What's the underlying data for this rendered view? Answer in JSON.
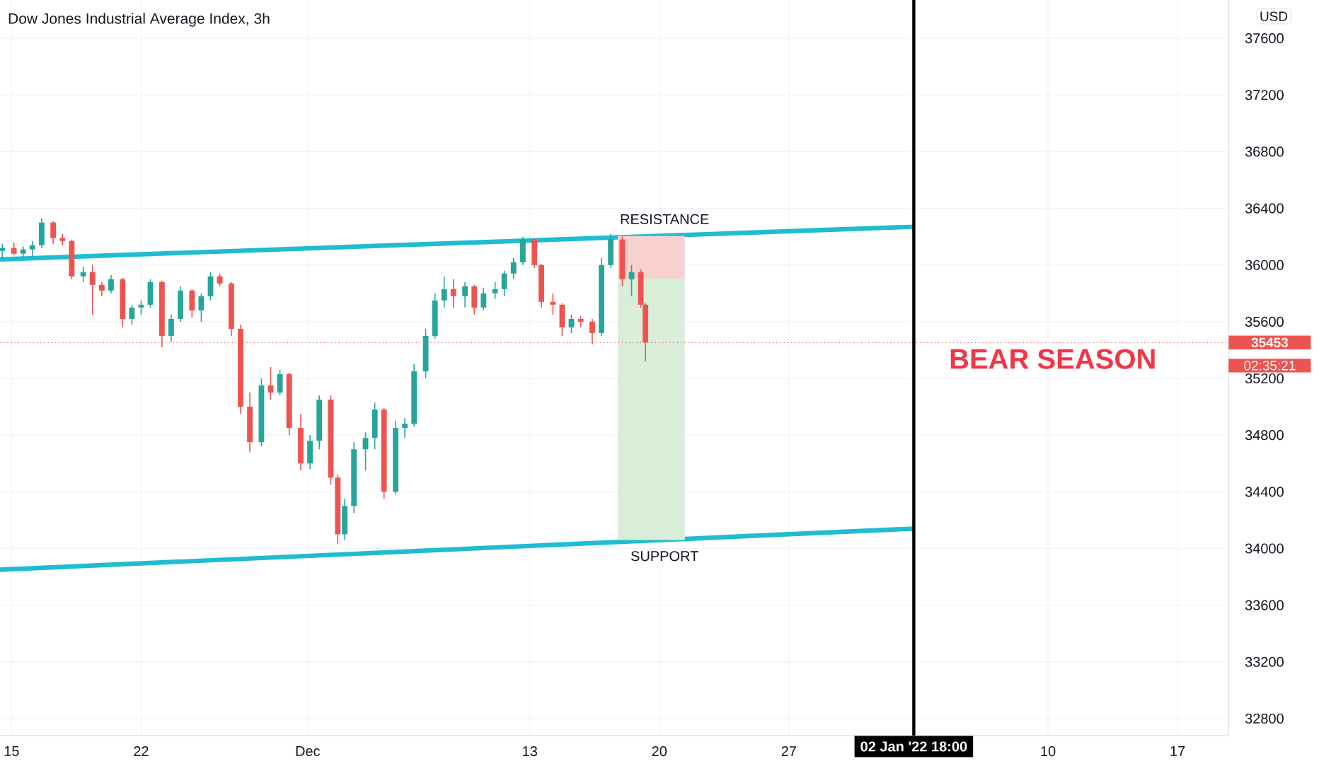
{
  "chart_data": {
    "type": "candlestick",
    "title": "Dow Jones Industrial Average Index, 3h",
    "ylabel": "USD",
    "xlim": [
      "2021-11-14T09:00",
      "2022-01-19T18:00"
    ],
    "ylim": [
      32680,
      37870
    ],
    "xticks": [
      {
        "value": "2021-11-15",
        "label": "15"
      },
      {
        "value": "2021-11-22",
        "label": "22"
      },
      {
        "value": "2021-12-01",
        "label": "Dec"
      },
      {
        "value": "2021-12-13",
        "label": "13"
      },
      {
        "value": "2021-12-20",
        "label": "20"
      },
      {
        "value": "2021-12-27",
        "label": "27"
      },
      {
        "value": "2022-01-10",
        "label": "10"
      },
      {
        "value": "2022-01-17",
        "label": "17"
      }
    ],
    "yticks": [
      32800,
      33200,
      33600,
      34000,
      34400,
      34800,
      35200,
      35600,
      36000,
      36400,
      36800,
      37200,
      37600
    ],
    "grid": true,
    "series": [
      {
        "type": "line",
        "color": "#f9d0d0",
        "x": [
          "2021-12-17T18:00",
          "2021-12-21T09:00"
        ],
        "values": [
          36200,
          36200
        ],
        "lower": [
          35900,
          35900
        ],
        "upper": [
          36200,
          36200
        ]
      },
      {
        "type": "line",
        "color": "#d8eed8",
        "x": [
          "2021-12-17T18:00",
          "2021-12-21T09:00"
        ],
        "values": [
          35900,
          35900
        ],
        "lower": [
          34060,
          34060
        ],
        "upper": [
          35900,
          35900
        ]
      },
      {
        "type": "line",
        "color": "#1fbcd2",
        "x": [
          "2021-11-14T09:00",
          "2022-01-02T18:00"
        ],
        "values": [
          36040,
          36270
        ]
      },
      {
        "type": "line",
        "color": "#1fbcd2",
        "x": [
          "2021-11-14T09:00",
          "2022-01-02T18:00"
        ],
        "values": [
          33850,
          34140
        ]
      },
      {
        "x": [
          "2021-11-14T12:00",
          "2021-11-15T03:00",
          "2021-11-15T15:00",
          "2021-11-16T03:00",
          "2021-11-16T15:00",
          "2021-11-17T06:00",
          "2021-11-17T18:00",
          "2021-11-18T06:00",
          "2021-11-18T21:00",
          "2021-11-19T09:00",
          "2021-11-19T21:00",
          "2021-11-20T09:00",
          "2021-11-21T00:00",
          "2021-11-21T12:00",
          "2021-11-22T00:00",
          "2021-11-22T12:00",
          "2021-11-23T03:00",
          "2021-11-23T15:00",
          "2021-11-24T03:00",
          "2021-11-24T18:00",
          "2021-11-25T06:00",
          "2021-11-25T18:00",
          "2021-11-26T06:00",
          "2021-11-26T21:00",
          "2021-11-27T09:00",
          "2021-11-27T21:00",
          "2021-11-28T12:00",
          "2021-11-29T00:00",
          "2021-11-29T12:00",
          "2021-11-30T00:00",
          "2021-11-30T15:00",
          "2021-12-01T03:00",
          "2021-12-01T15:00",
          "2021-12-02T06:00",
          "2021-12-02T15:00",
          "2021-12-03T00:00",
          "2021-12-03T12:00",
          "2021-12-04T03:00",
          "2021-12-04T15:00",
          "2021-12-05T03:00",
          "2021-12-05T18:00",
          "2021-12-06T06:00",
          "2021-12-06T18:00",
          "2021-12-07T09:00",
          "2021-12-07T21:00",
          "2021-12-08T09:00",
          "2021-12-08T21:00",
          "2021-12-09T12:00",
          "2021-12-10T00:00",
          "2021-12-10T12:00",
          "2021-12-11T03:00",
          "2021-12-11T15:00",
          "2021-12-12T03:00",
          "2021-12-12T15:00",
          "2021-12-13T06:00",
          "2021-12-13T15:00",
          "2021-12-14T06:00",
          "2021-12-14T18:00",
          "2021-12-15T06:00",
          "2021-12-15T18:00",
          "2021-12-16T09:00",
          "2021-12-16T21:00",
          "2021-12-17T09:00",
          "2021-12-18T00:00",
          "2021-12-18T12:00",
          "2021-12-19T00:00",
          "2021-12-19T06:00"
        ],
        "ohlc": [
          [
            36100,
            36150,
            36050,
            36120
          ],
          [
            36120,
            36160,
            36070,
            36080
          ],
          [
            36080,
            36130,
            36050,
            36110
          ],
          [
            36110,
            36170,
            36060,
            36140
          ],
          [
            36140,
            36330,
            36120,
            36300
          ],
          [
            36300,
            36310,
            36150,
            36190
          ],
          [
            36190,
            36220,
            36140,
            36170
          ],
          [
            36170,
            36180,
            35900,
            35920
          ],
          [
            35920,
            35990,
            35880,
            35950
          ],
          [
            35950,
            36000,
            35650,
            35860
          ],
          [
            35860,
            35880,
            35780,
            35820
          ],
          [
            35820,
            35930,
            35800,
            35900
          ],
          [
            35900,
            35910,
            35560,
            35620
          ],
          [
            35620,
            35720,
            35580,
            35700
          ],
          [
            35700,
            35750,
            35650,
            35720
          ],
          [
            35720,
            35900,
            35700,
            35880
          ],
          [
            35880,
            35890,
            35420,
            35500
          ],
          [
            35500,
            35650,
            35460,
            35620
          ],
          [
            35620,
            35850,
            35600,
            35820
          ],
          [
            35820,
            35830,
            35630,
            35680
          ],
          [
            35680,
            35800,
            35600,
            35780
          ],
          [
            35780,
            35950,
            35750,
            35920
          ],
          [
            35920,
            35940,
            35850,
            35870
          ],
          [
            35870,
            35880,
            35500,
            35550
          ],
          [
            35550,
            35580,
            34950,
            35000
          ],
          [
            35000,
            35100,
            34680,
            34750
          ],
          [
            34750,
            35200,
            34720,
            35150
          ],
          [
            35150,
            35280,
            35050,
            35100
          ],
          [
            35100,
            35260,
            35080,
            35230
          ],
          [
            35230,
            35240,
            34800,
            34850
          ],
          [
            34850,
            34950,
            34550,
            34600
          ],
          [
            34600,
            34800,
            34560,
            34760
          ],
          [
            34760,
            35080,
            34700,
            35050
          ],
          [
            35050,
            35080,
            34450,
            34500
          ],
          [
            34500,
            34520,
            34030,
            34100
          ],
          [
            34100,
            34350,
            34060,
            34300
          ],
          [
            34300,
            34750,
            34250,
            34700
          ],
          [
            34700,
            34820,
            34550,
            34780
          ],
          [
            34780,
            35030,
            34700,
            34980
          ],
          [
            34980,
            34990,
            34350,
            34400
          ],
          [
            34400,
            34900,
            34380,
            34850
          ],
          [
            34850,
            34920,
            34780,
            34880
          ],
          [
            34880,
            35300,
            34860,
            35250
          ],
          [
            35250,
            35550,
            35200,
            35500
          ],
          [
            35500,
            35800,
            35480,
            35750
          ],
          [
            35750,
            35920,
            35700,
            35830
          ],
          [
            35830,
            35900,
            35700,
            35780
          ],
          [
            35780,
            35880,
            35700,
            35850
          ],
          [
            35850,
            35860,
            35650,
            35700
          ],
          [
            35700,
            35840,
            35680,
            35800
          ],
          [
            35800,
            35880,
            35760,
            35830
          ],
          [
            35830,
            35960,
            35780,
            35940
          ],
          [
            35940,
            36050,
            35900,
            36020
          ],
          [
            36020,
            36200,
            36000,
            36180
          ],
          [
            36180,
            36190,
            35980,
            36000
          ],
          [
            36000,
            36010,
            35700,
            35740
          ],
          [
            35740,
            35800,
            35650,
            35720
          ],
          [
            35720,
            35730,
            35500,
            35560
          ],
          [
            35560,
            35650,
            35520,
            35620
          ],
          [
            35620,
            35640,
            35560,
            35600
          ],
          [
            35600,
            35620,
            35440,
            35520
          ],
          [
            35520,
            36050,
            35500,
            36000
          ],
          [
            36000,
            36220,
            35980,
            36180
          ],
          [
            36180,
            36200,
            35850,
            35900
          ],
          [
            35900,
            36000,
            35780,
            35950
          ],
          [
            35950,
            35970,
            35700,
            35720
          ],
          [
            35720,
            35730,
            35320,
            35453
          ]
        ],
        "colors": [
          "#26a69a",
          "#ef5350",
          "#26a69a",
          "#26a69a",
          "#26a69a",
          "#ef5350",
          "#ef5350",
          "#ef5350",
          "#26a69a",
          "#ef5350",
          "#ef5350",
          "#26a69a",
          "#ef5350",
          "#26a69a",
          "#26a69a",
          "#26a69a",
          "#ef5350",
          "#26a69a",
          "#26a69a",
          "#ef5350",
          "#26a69a",
          "#26a69a",
          "#ef5350",
          "#ef5350",
          "#ef5350",
          "#ef5350",
          "#26a69a",
          "#ef5350",
          "#26a69a",
          "#ef5350",
          "#ef5350",
          "#26a69a",
          "#26a69a",
          "#ef5350",
          "#ef5350",
          "#26a69a",
          "#26a69a",
          "#26a69a",
          "#26a69a",
          "#ef5350",
          "#26a69a",
          "#26a69a",
          "#26a69a",
          "#26a69a",
          "#26a69a",
          "#26a69a",
          "#ef5350",
          "#26a69a",
          "#ef5350",
          "#26a69a",
          "#26a69a",
          "#26a69a",
          "#26a69a",
          "#26a69a",
          "#ef5350",
          "#ef5350",
          "#ef5350",
          "#ef5350",
          "#26a69a",
          "#ef5350",
          "#ef5350",
          "#26a69a",
          "#26a69a",
          "#ef5350",
          "#26a69a",
          "#ef5350",
          "#ef5350"
        ]
      }
    ],
    "ref_lines": [
      {
        "axis": "y",
        "value": 35453,
        "label": "35453",
        "color": "#ef5350",
        "line_style": "dotted"
      },
      {
        "axis": "x",
        "value": "2022-01-02T18:00",
        "label": "02 Jan '22   18:00",
        "color": "#000000",
        "line_style": "solid"
      }
    ],
    "annotations": [
      "RESISTANCE",
      "SUPPORT",
      "02:35:21",
      "BEAR SEASON"
    ]
  }
}
